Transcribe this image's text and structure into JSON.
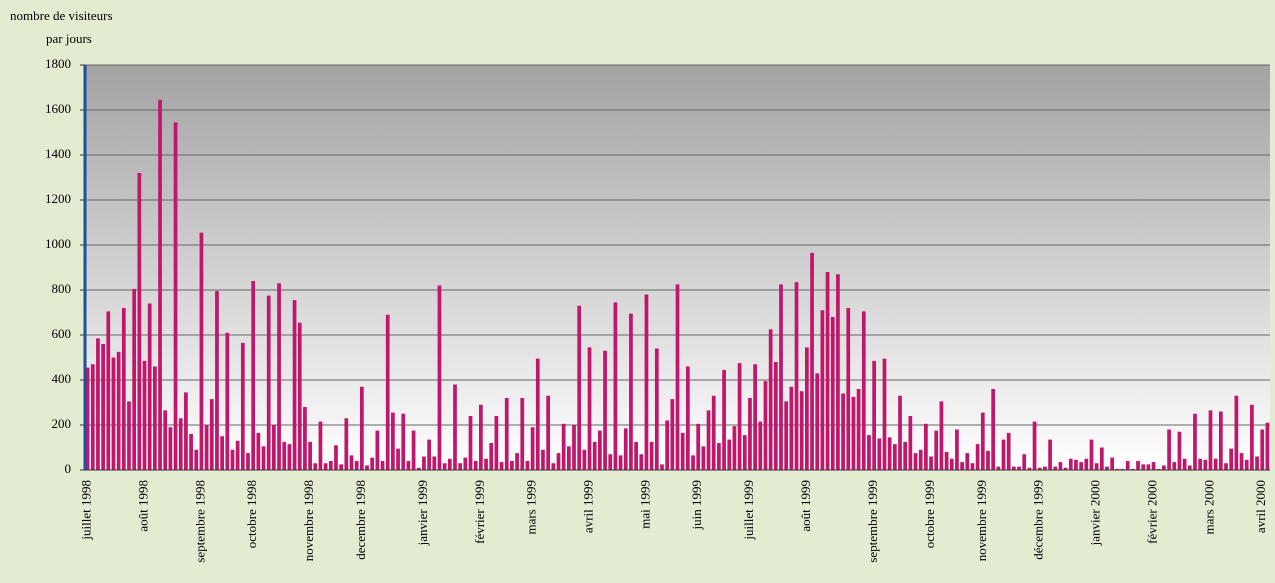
{
  "chart_data": {
    "type": "bar",
    "ylabel": [
      "nombre de visiteurs",
      "par jours"
    ],
    "color": "#c0166b",
    "ylim": [
      0,
      1800
    ],
    "yticks": [
      0,
      200,
      400,
      600,
      800,
      1000,
      1200,
      1400,
      1600,
      1800
    ],
    "grid": true,
    "categories": [
      "juillet 1998",
      null,
      null,
      null,
      null,
      null,
      null,
      null,
      null,
      null,
      null,
      "août 1998",
      null,
      null,
      null,
      null,
      null,
      null,
      null,
      null,
      null,
      null,
      "septembre 1998",
      null,
      null,
      null,
      null,
      null,
      null,
      null,
      null,
      null,
      "octobre 1998",
      null,
      null,
      null,
      null,
      null,
      null,
      null,
      null,
      null,
      null,
      "novembre 1998",
      null,
      null,
      null,
      null,
      null,
      null,
      null,
      null,
      null,
      "decembre 1998",
      null,
      null,
      null,
      null,
      null,
      null,
      null,
      null,
      null,
      null,
      null,
      "janvier 1999",
      null,
      null,
      null,
      null,
      null,
      null,
      null,
      null,
      null,
      null,
      "février 1999",
      null,
      null,
      null,
      null,
      null,
      null,
      null,
      null,
      null,
      "mars 1999",
      null,
      null,
      null,
      null,
      null,
      null,
      null,
      null,
      null,
      null,
      "avril 1999",
      null,
      null,
      null,
      null,
      null,
      null,
      null,
      null,
      null,
      null,
      "mai 1999",
      null,
      null,
      null,
      null,
      null,
      null,
      null,
      null,
      null,
      "juin 1999",
      null,
      null,
      null,
      null,
      null,
      null,
      null,
      null,
      null,
      "juillet 1999",
      null,
      null,
      null,
      null,
      null,
      null,
      null,
      null,
      null,
      null,
      "août 1999",
      null,
      null,
      null,
      null,
      null,
      null,
      null,
      null,
      null,
      null,
      null,
      null,
      "septembre 1999",
      null,
      null,
      null,
      null,
      null,
      null,
      null,
      null,
      null,
      null,
      "octobre 1999",
      null,
      null,
      null,
      null,
      null,
      null,
      null,
      null,
      null,
      "novembre 1999",
      null,
      null,
      null,
      null,
      null,
      null,
      null,
      null,
      null,
      null,
      "décembre 1999",
      null,
      null,
      null,
      null,
      null,
      null,
      null,
      null,
      null,
      null,
      "janvier 2000",
      null,
      null,
      null,
      null,
      null,
      null,
      null,
      null,
      null,
      null,
      "février 2000",
      null,
      null,
      null,
      null,
      null,
      null,
      null,
      null,
      null,
      null,
      "mars 2000",
      null,
      null,
      null,
      null,
      null,
      null,
      null,
      null,
      null,
      "avril 2000",
      null
    ],
    "values": [
      455,
      470,
      585,
      560,
      705,
      500,
      525,
      720,
      305,
      805,
      1320,
      485,
      740,
      460,
      1645,
      265,
      190,
      1545,
      230,
      345,
      160,
      90,
      1055,
      200,
      315,
      795,
      150,
      610,
      90,
      130,
      565,
      75,
      840,
      165,
      105,
      775,
      200,
      830,
      125,
      115,
      755,
      655,
      280,
      125,
      30,
      215,
      30,
      40,
      110,
      25,
      230,
      65,
      40,
      370,
      20,
      55,
      175,
      40,
      690,
      255,
      95,
      250,
      40,
      175,
      10,
      60,
      135,
      60,
      820,
      30,
      50,
      380,
      30,
      55,
      240,
      40,
      290,
      50,
      120,
      240,
      35,
      320,
      40,
      75,
      320,
      40,
      190,
      495,
      90,
      330,
      30,
      75,
      205,
      105,
      200,
      730,
      90,
      545,
      125,
      175,
      530,
      70,
      745,
      65,
      185,
      695,
      125,
      70,
      780,
      125,
      540,
      25,
      220,
      315,
      825,
      165,
      460,
      65,
      205,
      105,
      265,
      330,
      120,
      445,
      135,
      195,
      475,
      155,
      320,
      470,
      215,
      395,
      625,
      480,
      825,
      305,
      370,
      835,
      350,
      545,
      965,
      430,
      710,
      880,
      680,
      870,
      340,
      720,
      325,
      360,
      705,
      155,
      485,
      140,
      495,
      145,
      115,
      330,
      125,
      240,
      75,
      90,
      205,
      60,
      175,
      305,
      80,
      50,
      180,
      35,
      75,
      30,
      115,
      255,
      85,
      360,
      15,
      135,
      165,
      15,
      15,
      70,
      10,
      215,
      10,
      15,
      135,
      15,
      35,
      10,
      50,
      45,
      35,
      50,
      135,
      30,
      100,
      15,
      55,
      5,
      5,
      40,
      5,
      40,
      25,
      25,
      35,
      5,
      20,
      180,
      35,
      170,
      50,
      20,
      250,
      50,
      45,
      265,
      50,
      260,
      30,
      95,
      330,
      75,
      45,
      290,
      60,
      180,
      210
    ]
  }
}
